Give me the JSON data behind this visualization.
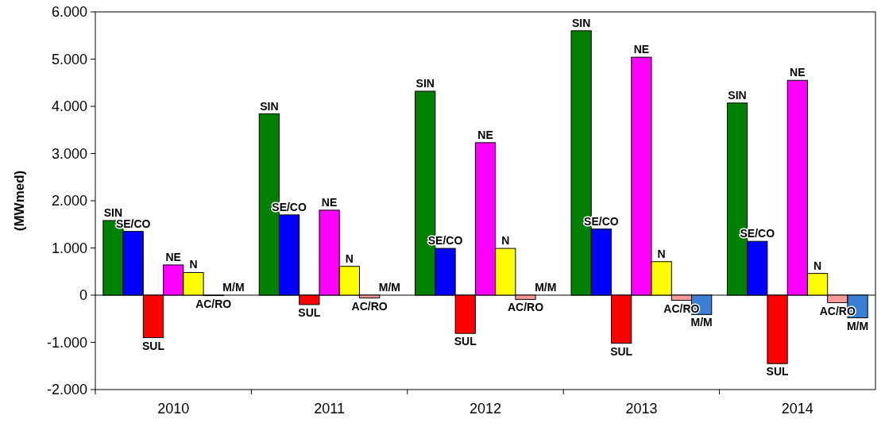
{
  "chart_data": {
    "type": "bar",
    "ylabel": "(MWmed)",
    "categories": [
      "2010",
      "2011",
      "2012",
      "2013",
      "2014"
    ],
    "series": [
      {
        "name": "SIN",
        "color": "#008000",
        "values": [
          1580,
          3840,
          4320,
          5600,
          4070
        ]
      },
      {
        "name": "SE/CO",
        "color": "#0000ff",
        "values": [
          1350,
          1700,
          990,
          1400,
          1140
        ]
      },
      {
        "name": "SUL",
        "color": "#ff0000",
        "values": [
          -900,
          -200,
          -810,
          -1020,
          -1450
        ]
      },
      {
        "name": "NE",
        "color": "#ff00ff",
        "values": [
          640,
          1800,
          3230,
          5040,
          4550
        ]
      },
      {
        "name": "N",
        "color": "#ffff00",
        "values": [
          480,
          610,
          990,
          710,
          460
        ]
      },
      {
        "name": "AC/RO",
        "color": "#ff9999",
        "values": [
          -10,
          -60,
          -90,
          -110,
          -160
        ]
      },
      {
        "name": "M/M",
        "color": "#3a7fd5",
        "values": [
          0,
          0,
          0,
          -410,
          -480
        ]
      }
    ],
    "ylim": [
      -2000,
      6000
    ],
    "yticks": [
      {
        "value": -2000,
        "label": "-2.000"
      },
      {
        "value": -1000,
        "label": "-1.000"
      },
      {
        "value": 0,
        "label": "0"
      },
      {
        "value": 1000,
        "label": "1.000"
      },
      {
        "value": 2000,
        "label": "2.000"
      },
      {
        "value": 3000,
        "label": "3.000"
      },
      {
        "value": 4000,
        "label": "4.000"
      },
      {
        "value": 5000,
        "label": "5.000"
      },
      {
        "value": 6000,
        "label": "6.000"
      }
    ],
    "legend": false
  }
}
